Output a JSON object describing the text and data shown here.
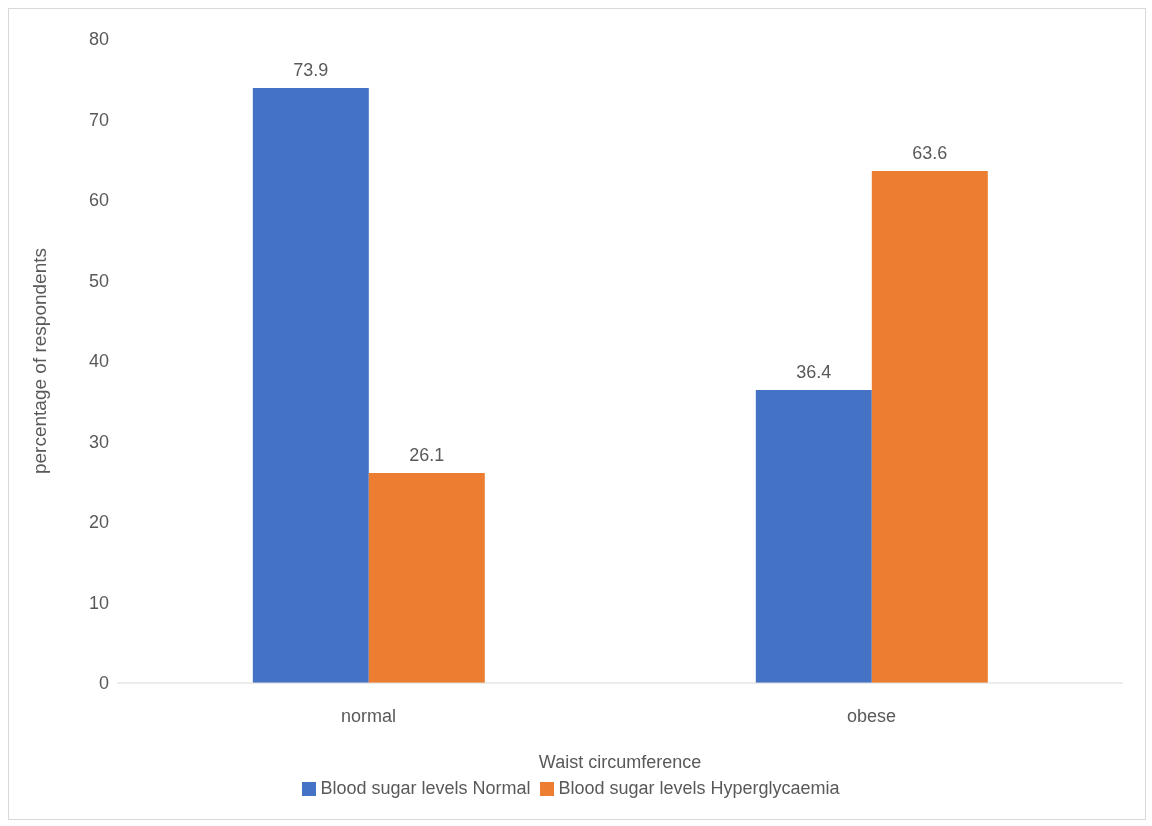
{
  "chart_data": {
    "type": "bar",
    "xlabel": "Waist circumference",
    "ylabel": "percentage of respondents",
    "categories": [
      "normal",
      "obese"
    ],
    "series": [
      {
        "name": "Blood sugar levels Normal",
        "color": "#4472c4",
        "values": [
          73.9,
          36.4
        ]
      },
      {
        "name": "Blood sugar levels Hyperglycaemia",
        "color": "#ed7d31",
        "values": [
          26.1,
          63.6
        ]
      }
    ],
    "ylim": [
      0,
      80
    ],
    "yticks": [
      0,
      10,
      20,
      30,
      40,
      50,
      60,
      70,
      80
    ],
    "grid": false,
    "legend": "bottom",
    "data_labels": true
  }
}
